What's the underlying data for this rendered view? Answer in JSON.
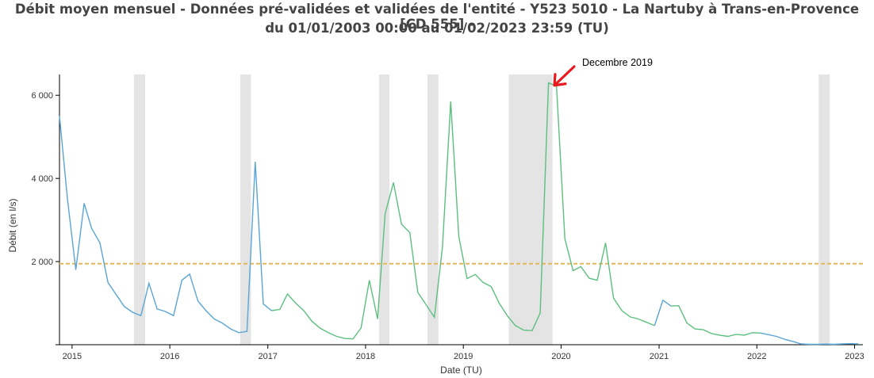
{
  "title_line1": "Débit moyen mensuel - Données pré-validées et validées de l'entité - Y523 5010 - La Nartuby à Trans-en-Provence [CD 555] -",
  "title_line2": "du 01/01/2003 00:00 au 01/02/2023 23:59 (TU)",
  "colors": {
    "validated_line": "#5aa5d6",
    "prevalidated_line": "#5cbf80",
    "reference_line": "#e3b75a",
    "missing_band": "#e4e4e4",
    "annotation_arrow": "#e8191f"
  },
  "chart_data": {
    "type": "line",
    "xlabel": "Date (TU)",
    "ylabel": "Débit (en l/s)",
    "xlim": [
      "2014-11-15",
      "2023-02-01"
    ],
    "ylim": [
      0,
      6500
    ],
    "y_ticks": [
      0,
      2000,
      4000,
      6000
    ],
    "y_tick_labels": [
      "",
      "2 000",
      "4 000",
      "6 000"
    ],
    "x_tick_labels": [
      "2015",
      "2016",
      "2017",
      "2018",
      "2019",
      "2020",
      "2021",
      "2022",
      "2023"
    ],
    "grid": false,
    "reference_line": 1950,
    "missing_periods": [
      [
        "2015-08-20",
        "2015-10-01"
      ],
      [
        "2016-09-20",
        "2016-10-30"
      ],
      [
        "2018-02-20",
        "2018-03-31"
      ],
      [
        "2018-08-20",
        "2018-09-30"
      ],
      [
        "2019-06-20",
        "2019-11-30"
      ],
      [
        "2022-08-20",
        "2022-09-30"
      ]
    ],
    "annotation": {
      "text": "Decembre 2019",
      "x": "2019-12-01",
      "y": 6200
    },
    "series": [
      {
        "points": [
          [
            "2014-11-15",
            5500
          ],
          [
            "2014-12-15",
            3500
          ],
          [
            "2015-01-15",
            1800
          ],
          [
            "2015-02-15",
            3400
          ],
          [
            "2015-03-15",
            2800
          ],
          [
            "2015-04-15",
            2450
          ],
          [
            "2015-05-15",
            1500
          ],
          [
            "2015-06-15",
            1200
          ],
          [
            "2015-07-15",
            920
          ],
          [
            "2015-08-15",
            780
          ],
          [
            "2015-09-15",
            700
          ],
          [
            "2015-10-15",
            1480
          ],
          [
            "2015-11-15",
            860
          ],
          [
            "2015-12-15",
            800
          ],
          [
            "2016-01-15",
            700
          ],
          [
            "2016-02-15",
            1550
          ],
          [
            "2016-03-15",
            1700
          ],
          [
            "2016-04-15",
            1050
          ],
          [
            "2016-05-15",
            820
          ],
          [
            "2016-06-15",
            620
          ],
          [
            "2016-07-15",
            520
          ],
          [
            "2016-08-15",
            380
          ],
          [
            "2016-09-15",
            290
          ],
          [
            "2016-10-15",
            320
          ],
          [
            "2016-11-15",
            4400
          ],
          [
            "2016-12-15",
            980
          ],
          [
            "2017-01-15",
            820
          ]
        ]
      },
      {
        "points": [
          [
            "2017-01-15",
            820
          ],
          [
            "2017-02-15",
            850
          ],
          [
            "2017-03-15",
            1220
          ],
          [
            "2017-04-15",
            1000
          ],
          [
            "2017-05-15",
            820
          ],
          [
            "2017-06-15",
            560
          ],
          [
            "2017-07-15",
            400
          ],
          [
            "2017-08-15",
            290
          ],
          [
            "2017-09-15",
            200
          ],
          [
            "2017-10-15",
            150
          ],
          [
            "2017-11-15",
            140
          ],
          [
            "2017-12-15",
            400
          ],
          [
            "2018-01-15",
            1550
          ],
          [
            "2018-02-15",
            620
          ],
          [
            "2018-03-15",
            3150
          ],
          [
            "2018-04-15",
            3900
          ],
          [
            "2018-05-15",
            2900
          ],
          [
            "2018-06-15",
            2700
          ],
          [
            "2018-07-15",
            1260
          ],
          [
            "2018-08-15",
            960
          ],
          [
            "2018-09-15",
            660
          ],
          [
            "2018-10-15",
            2350
          ],
          [
            "2018-11-15",
            5850
          ],
          [
            "2018-12-15",
            2600
          ],
          [
            "2019-01-15",
            1590
          ],
          [
            "2019-02-15",
            1690
          ],
          [
            "2019-03-15",
            1500
          ],
          [
            "2019-04-15",
            1400
          ],
          [
            "2019-05-15",
            1000
          ],
          [
            "2019-06-15",
            690
          ],
          [
            "2019-07-15",
            460
          ],
          [
            "2019-08-15",
            350
          ],
          [
            "2019-09-15",
            340
          ],
          [
            "2019-10-15",
            760
          ],
          [
            "2019-11-15",
            6300
          ],
          [
            "2019-12-15",
            6220
          ],
          [
            "2020-01-15",
            2550
          ],
          [
            "2020-02-15",
            1780
          ],
          [
            "2020-03-15",
            1880
          ],
          [
            "2020-04-15",
            1600
          ],
          [
            "2020-05-15",
            1550
          ],
          [
            "2020-06-15",
            2450
          ],
          [
            "2020-07-15",
            1120
          ],
          [
            "2020-08-15",
            820
          ],
          [
            "2020-09-15",
            670
          ],
          [
            "2020-10-15",
            620
          ],
          [
            "2020-11-15",
            540
          ],
          [
            "2020-12-15",
            460
          ]
        ]
      },
      {
        "points": [
          [
            "2020-12-15",
            460
          ],
          [
            "2021-01-15",
            1070
          ],
          [
            "2021-02-15",
            930
          ]
        ]
      },
      {
        "points": [
          [
            "2021-02-15",
            930
          ],
          [
            "2021-03-15",
            940
          ],
          [
            "2021-04-15",
            520
          ],
          [
            "2021-05-15",
            380
          ],
          [
            "2021-06-15",
            360
          ],
          [
            "2021-07-15",
            270
          ],
          [
            "2021-08-15",
            230
          ],
          [
            "2021-09-15",
            200
          ],
          [
            "2021-10-15",
            250
          ],
          [
            "2021-11-15",
            230
          ],
          [
            "2021-12-15",
            290
          ],
          [
            "2022-01-15",
            280
          ]
        ]
      },
      {
        "points": [
          [
            "2022-01-15",
            280
          ],
          [
            "2022-02-15",
            240
          ],
          [
            "2022-03-15",
            200
          ],
          [
            "2022-04-15",
            130
          ],
          [
            "2022-05-15",
            80
          ],
          [
            "2022-06-15",
            20
          ],
          [
            "2022-07-15",
            10
          ],
          [
            "2022-08-15",
            10
          ],
          [
            "2022-09-15",
            15
          ],
          [
            "2022-10-15",
            10
          ],
          [
            "2022-11-15",
            20
          ],
          [
            "2022-12-15",
            25
          ],
          [
            "2023-01-15",
            20
          ]
        ]
      }
    ],
    "series_colors": [
      "#5aa5d6",
      "#5cbf80",
      "#5aa5d6",
      "#5cbf80",
      "#5aa5d6"
    ]
  }
}
